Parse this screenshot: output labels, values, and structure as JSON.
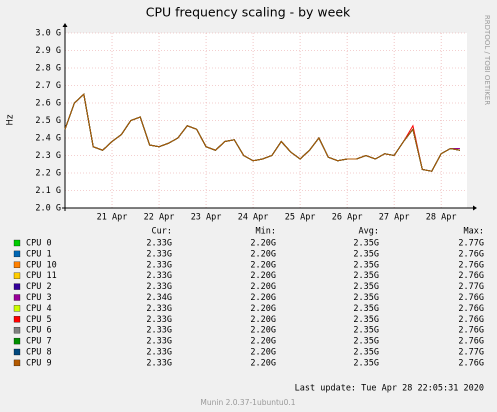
{
  "chart_data": {
    "type": "line",
    "title": "CPU frequency scaling - by week",
    "y_label": "Hz",
    "watermark": "RRDTOOL / TOBI OETIKER",
    "column_headers": [
      "Cur:",
      "Min:",
      "Avg:",
      "Max:"
    ],
    "last_update": "Last update: Tue Apr 28 22:05:31 2020",
    "footer": "Munin 2.0.37-1ubuntu0.1",
    "grid": true,
    "xlim": [
      20,
      28.55
    ],
    "xticks": [
      {
        "value": 21,
        "label": "21 Apr"
      },
      {
        "value": 22,
        "label": "22 Apr"
      },
      {
        "value": 23,
        "label": "23 Apr"
      },
      {
        "value": 24,
        "label": "24 Apr"
      },
      {
        "value": 25,
        "label": "25 Apr"
      },
      {
        "value": 26,
        "label": "26 Apr"
      },
      {
        "value": 27,
        "label": "27 Apr"
      },
      {
        "value": 28,
        "label": "28 Apr"
      }
    ],
    "ylim": [
      2000000000.0,
      3000000000.0
    ],
    "yticks": [
      {
        "value": 2000000000.0,
        "label": "2.0 G"
      },
      {
        "value": 2100000000.0,
        "label": "2.1 G"
      },
      {
        "value": 2200000000.0,
        "label": "2.2 G"
      },
      {
        "value": 2300000000.0,
        "label": "2.3 G"
      },
      {
        "value": 2400000000.0,
        "label": "2.4 G"
      },
      {
        "value": 2500000000.0,
        "label": "2.5 G"
      },
      {
        "value": 2600000000.0,
        "label": "2.6 G"
      },
      {
        "value": 2700000000.0,
        "label": "2.7 G"
      },
      {
        "value": 2800000000.0,
        "label": "2.8 G"
      },
      {
        "value": 2900000000.0,
        "label": "2.9 G"
      },
      {
        "value": 3000000000.0,
        "label": "3.0 G"
      }
    ],
    "x": [
      20.0,
      20.2,
      20.4,
      20.6,
      20.8,
      21.0,
      21.2,
      21.4,
      21.6,
      21.8,
      22.0,
      22.2,
      22.4,
      22.6,
      22.8,
      23.0,
      23.2,
      23.4,
      23.6,
      23.8,
      24.0,
      24.2,
      24.4,
      24.6,
      24.8,
      25.0,
      25.2,
      25.4,
      25.6,
      25.8,
      26.0,
      26.2,
      26.4,
      26.6,
      26.8,
      27.0,
      27.2,
      27.4,
      27.6,
      27.8,
      28.0,
      28.2,
      28.4
    ],
    "series": [
      {
        "name": "CPU 0",
        "color": "#00cc00",
        "cur": "2.33G",
        "min": "2.20G",
        "avg": "2.35G",
        "max": "2.77G",
        "values": [
          2450000000.0,
          2600000000.0,
          2650000000.0,
          2350000000.0,
          2330000000.0,
          2380000000.0,
          2420000000.0,
          2500000000.0,
          2520000000.0,
          2360000000.0,
          2350000000.0,
          2370000000.0,
          2400000000.0,
          2470000000.0,
          2450000000.0,
          2350000000.0,
          2330000000.0,
          2380000000.0,
          2390000000.0,
          2300000000.0,
          2270000000.0,
          2280000000.0,
          2300000000.0,
          2380000000.0,
          2320000000.0,
          2280000000.0,
          2330000000.0,
          2400000000.0,
          2290000000.0,
          2270000000.0,
          2280000000.0,
          2280000000.0,
          2300000000.0,
          2280000000.0,
          2310000000.0,
          2300000000.0,
          2380000000.0,
          2450000000.0,
          2220000000.0,
          2210000000.0,
          2310000000.0,
          2340000000.0,
          2330000000.0
        ]
      },
      {
        "name": "CPU 1",
        "color": "#0066b3",
        "cur": "2.33G",
        "min": "2.20G",
        "avg": "2.35G",
        "max": "2.76G",
        "values": [
          2450000000.0,
          2600000000.0,
          2650000000.0,
          2350000000.0,
          2330000000.0,
          2380000000.0,
          2420000000.0,
          2500000000.0,
          2520000000.0,
          2360000000.0,
          2350000000.0,
          2370000000.0,
          2400000000.0,
          2470000000.0,
          2450000000.0,
          2350000000.0,
          2330000000.0,
          2380000000.0,
          2390000000.0,
          2300000000.0,
          2270000000.0,
          2280000000.0,
          2300000000.0,
          2380000000.0,
          2320000000.0,
          2280000000.0,
          2330000000.0,
          2400000000.0,
          2290000000.0,
          2270000000.0,
          2280000000.0,
          2280000000.0,
          2300000000.0,
          2280000000.0,
          2310000000.0,
          2300000000.0,
          2380000000.0,
          2450000000.0,
          2220000000.0,
          2210000000.0,
          2310000000.0,
          2340000000.0,
          2330000000.0
        ]
      },
      {
        "name": "CPU 10",
        "color": "#ff8000",
        "cur": "2.33G",
        "min": "2.20G",
        "avg": "2.35G",
        "max": "2.76G",
        "values": [
          2450000000.0,
          2600000000.0,
          2650000000.0,
          2350000000.0,
          2330000000.0,
          2380000000.0,
          2420000000.0,
          2500000000.0,
          2520000000.0,
          2360000000.0,
          2350000000.0,
          2370000000.0,
          2400000000.0,
          2470000000.0,
          2450000000.0,
          2350000000.0,
          2330000000.0,
          2380000000.0,
          2390000000.0,
          2300000000.0,
          2270000000.0,
          2280000000.0,
          2300000000.0,
          2380000000.0,
          2320000000.0,
          2280000000.0,
          2330000000.0,
          2400000000.0,
          2290000000.0,
          2270000000.0,
          2280000000.0,
          2280000000.0,
          2300000000.0,
          2280000000.0,
          2310000000.0,
          2300000000.0,
          2380000000.0,
          2450000000.0,
          2220000000.0,
          2210000000.0,
          2310000000.0,
          2340000000.0,
          2330000000.0
        ]
      },
      {
        "name": "CPU 11",
        "color": "#ffcc00",
        "cur": "2.33G",
        "min": "2.20G",
        "avg": "2.35G",
        "max": "2.76G",
        "values": [
          2450000000.0,
          2600000000.0,
          2650000000.0,
          2350000000.0,
          2330000000.0,
          2380000000.0,
          2420000000.0,
          2500000000.0,
          2520000000.0,
          2360000000.0,
          2350000000.0,
          2370000000.0,
          2400000000.0,
          2470000000.0,
          2450000000.0,
          2350000000.0,
          2330000000.0,
          2380000000.0,
          2390000000.0,
          2300000000.0,
          2270000000.0,
          2280000000.0,
          2300000000.0,
          2380000000.0,
          2320000000.0,
          2280000000.0,
          2330000000.0,
          2400000000.0,
          2290000000.0,
          2270000000.0,
          2280000000.0,
          2280000000.0,
          2300000000.0,
          2280000000.0,
          2310000000.0,
          2300000000.0,
          2380000000.0,
          2450000000.0,
          2220000000.0,
          2210000000.0,
          2310000000.0,
          2340000000.0,
          2330000000.0
        ]
      },
      {
        "name": "CPU 2",
        "color": "#330099",
        "cur": "2.33G",
        "min": "2.20G",
        "avg": "2.35G",
        "max": "2.77G",
        "values": [
          2450000000.0,
          2600000000.0,
          2650000000.0,
          2350000000.0,
          2330000000.0,
          2380000000.0,
          2420000000.0,
          2500000000.0,
          2520000000.0,
          2360000000.0,
          2350000000.0,
          2370000000.0,
          2400000000.0,
          2470000000.0,
          2450000000.0,
          2350000000.0,
          2330000000.0,
          2380000000.0,
          2390000000.0,
          2300000000.0,
          2270000000.0,
          2280000000.0,
          2300000000.0,
          2380000000.0,
          2320000000.0,
          2280000000.0,
          2330000000.0,
          2400000000.0,
          2290000000.0,
          2270000000.0,
          2280000000.0,
          2280000000.0,
          2300000000.0,
          2280000000.0,
          2310000000.0,
          2300000000.0,
          2380000000.0,
          2450000000.0,
          2220000000.0,
          2210000000.0,
          2310000000.0,
          2340000000.0,
          2330000000.0
        ]
      },
      {
        "name": "CPU 3",
        "color": "#990099",
        "cur": "2.34G",
        "min": "2.20G",
        "avg": "2.35G",
        "max": "2.76G",
        "values": [
          2450000000.0,
          2600000000.0,
          2650000000.0,
          2350000000.0,
          2330000000.0,
          2380000000.0,
          2420000000.0,
          2500000000.0,
          2520000000.0,
          2360000000.0,
          2350000000.0,
          2370000000.0,
          2400000000.0,
          2470000000.0,
          2450000000.0,
          2350000000.0,
          2330000000.0,
          2380000000.0,
          2390000000.0,
          2300000000.0,
          2270000000.0,
          2280000000.0,
          2300000000.0,
          2380000000.0,
          2320000000.0,
          2280000000.0,
          2330000000.0,
          2400000000.0,
          2290000000.0,
          2270000000.0,
          2280000000.0,
          2280000000.0,
          2300000000.0,
          2280000000.0,
          2310000000.0,
          2300000000.0,
          2380000000.0,
          2450000000.0,
          2220000000.0,
          2210000000.0,
          2310000000.0,
          2340000000.0,
          2340000000.0
        ]
      },
      {
        "name": "CPU 4",
        "color": "#ccff00",
        "cur": "2.33G",
        "min": "2.20G",
        "avg": "2.35G",
        "max": "2.76G",
        "values": [
          2450000000.0,
          2600000000.0,
          2650000000.0,
          2350000000.0,
          2330000000.0,
          2380000000.0,
          2420000000.0,
          2500000000.0,
          2520000000.0,
          2360000000.0,
          2350000000.0,
          2370000000.0,
          2400000000.0,
          2470000000.0,
          2450000000.0,
          2350000000.0,
          2330000000.0,
          2380000000.0,
          2390000000.0,
          2300000000.0,
          2270000000.0,
          2280000000.0,
          2300000000.0,
          2380000000.0,
          2320000000.0,
          2280000000.0,
          2330000000.0,
          2400000000.0,
          2290000000.0,
          2270000000.0,
          2280000000.0,
          2280000000.0,
          2300000000.0,
          2280000000.0,
          2310000000.0,
          2300000000.0,
          2380000000.0,
          2450000000.0,
          2220000000.0,
          2210000000.0,
          2310000000.0,
          2340000000.0,
          2330000000.0
        ]
      },
      {
        "name": "CPU 5",
        "color": "#ff0000",
        "cur": "2.33G",
        "min": "2.20G",
        "avg": "2.35G",
        "max": "2.76G",
        "values": [
          2450000000.0,
          2600000000.0,
          2650000000.0,
          2350000000.0,
          2330000000.0,
          2380000000.0,
          2420000000.0,
          2500000000.0,
          2520000000.0,
          2360000000.0,
          2350000000.0,
          2370000000.0,
          2400000000.0,
          2470000000.0,
          2450000000.0,
          2350000000.0,
          2330000000.0,
          2380000000.0,
          2390000000.0,
          2300000000.0,
          2270000000.0,
          2280000000.0,
          2300000000.0,
          2380000000.0,
          2320000000.0,
          2280000000.0,
          2330000000.0,
          2400000000.0,
          2290000000.0,
          2270000000.0,
          2280000000.0,
          2280000000.0,
          2300000000.0,
          2280000000.0,
          2310000000.0,
          2300000000.0,
          2380000000.0,
          2470000000.0,
          2220000000.0,
          2210000000.0,
          2310000000.0,
          2340000000.0,
          2330000000.0
        ]
      },
      {
        "name": "CPU 6",
        "color": "#808080",
        "cur": "2.33G",
        "min": "2.20G",
        "avg": "2.35G",
        "max": "2.76G",
        "values": [
          2450000000.0,
          2600000000.0,
          2650000000.0,
          2350000000.0,
          2330000000.0,
          2380000000.0,
          2420000000.0,
          2500000000.0,
          2520000000.0,
          2360000000.0,
          2350000000.0,
          2370000000.0,
          2400000000.0,
          2470000000.0,
          2450000000.0,
          2350000000.0,
          2330000000.0,
          2380000000.0,
          2390000000.0,
          2300000000.0,
          2270000000.0,
          2280000000.0,
          2300000000.0,
          2380000000.0,
          2320000000.0,
          2280000000.0,
          2330000000.0,
          2400000000.0,
          2290000000.0,
          2270000000.0,
          2280000000.0,
          2280000000.0,
          2300000000.0,
          2280000000.0,
          2310000000.0,
          2300000000.0,
          2380000000.0,
          2450000000.0,
          2220000000.0,
          2210000000.0,
          2310000000.0,
          2340000000.0,
          2330000000.0
        ]
      },
      {
        "name": "CPU 7",
        "color": "#008f00",
        "cur": "2.33G",
        "min": "2.20G",
        "avg": "2.35G",
        "max": "2.76G",
        "values": [
          2450000000.0,
          2600000000.0,
          2650000000.0,
          2350000000.0,
          2330000000.0,
          2380000000.0,
          2420000000.0,
          2500000000.0,
          2520000000.0,
          2360000000.0,
          2350000000.0,
          2370000000.0,
          2400000000.0,
          2470000000.0,
          2450000000.0,
          2350000000.0,
          2330000000.0,
          2380000000.0,
          2390000000.0,
          2300000000.0,
          2270000000.0,
          2280000000.0,
          2300000000.0,
          2380000000.0,
          2320000000.0,
          2280000000.0,
          2330000000.0,
          2400000000.0,
          2290000000.0,
          2270000000.0,
          2280000000.0,
          2280000000.0,
          2300000000.0,
          2280000000.0,
          2310000000.0,
          2300000000.0,
          2380000000.0,
          2450000000.0,
          2220000000.0,
          2210000000.0,
          2310000000.0,
          2340000000.0,
          2330000000.0
        ]
      },
      {
        "name": "CPU 8",
        "color": "#00487d",
        "cur": "2.33G",
        "min": "2.20G",
        "avg": "2.35G",
        "max": "2.77G",
        "values": [
          2450000000.0,
          2600000000.0,
          2650000000.0,
          2350000000.0,
          2330000000.0,
          2380000000.0,
          2420000000.0,
          2500000000.0,
          2520000000.0,
          2360000000.0,
          2350000000.0,
          2370000000.0,
          2400000000.0,
          2470000000.0,
          2450000000.0,
          2350000000.0,
          2330000000.0,
          2380000000.0,
          2390000000.0,
          2300000000.0,
          2270000000.0,
          2280000000.0,
          2300000000.0,
          2380000000.0,
          2320000000.0,
          2280000000.0,
          2330000000.0,
          2400000000.0,
          2290000000.0,
          2270000000.0,
          2280000000.0,
          2280000000.0,
          2300000000.0,
          2280000000.0,
          2310000000.0,
          2300000000.0,
          2380000000.0,
          2450000000.0,
          2220000000.0,
          2210000000.0,
          2310000000.0,
          2340000000.0,
          2330000000.0
        ]
      },
      {
        "name": "CPU 9",
        "color": "#b35a00",
        "cur": "2.33G",
        "min": "2.20G",
        "avg": "2.35G",
        "max": "2.76G",
        "values": [
          2450000000.0,
          2600000000.0,
          2650000000.0,
          2350000000.0,
          2330000000.0,
          2380000000.0,
          2420000000.0,
          2500000000.0,
          2520000000.0,
          2360000000.0,
          2350000000.0,
          2370000000.0,
          2400000000.0,
          2470000000.0,
          2450000000.0,
          2350000000.0,
          2330000000.0,
          2380000000.0,
          2390000000.0,
          2300000000.0,
          2270000000.0,
          2280000000.0,
          2300000000.0,
          2380000000.0,
          2320000000.0,
          2280000000.0,
          2330000000.0,
          2400000000.0,
          2290000000.0,
          2270000000.0,
          2280000000.0,
          2280000000.0,
          2300000000.0,
          2280000000.0,
          2310000000.0,
          2300000000.0,
          2380000000.0,
          2450000000.0,
          2220000000.0,
          2210000000.0,
          2310000000.0,
          2340000000.0,
          2330000000.0
        ]
      }
    ]
  }
}
